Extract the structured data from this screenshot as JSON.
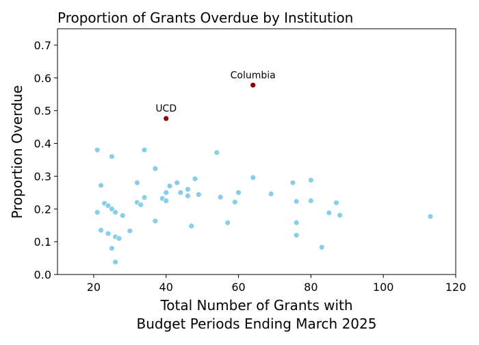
{
  "chart_data": {
    "type": "scatter",
    "title": "Proportion of Grants Overdue by Institution",
    "xlabel": [
      "Total Number of Grants with",
      "Budget Periods Ending March 2025"
    ],
    "ylabel": "Proportion Overdue",
    "xlim": [
      10,
      120
    ],
    "ylim": [
      0,
      0.75
    ],
    "xticks": [
      20,
      40,
      60,
      80,
      100,
      120
    ],
    "yticks": [
      0.0,
      0.1,
      0.2,
      0.3,
      0.4,
      0.5,
      0.6,
      0.7
    ],
    "grid": false,
    "colors": {
      "default": "#87ceeb",
      "highlight": "#8b0000"
    },
    "points": [
      [
        21,
        0.38
      ],
      [
        25,
        0.36
      ],
      [
        22,
        0.272
      ],
      [
        23,
        0.217
      ],
      [
        24,
        0.21
      ],
      [
        25,
        0.2
      ],
      [
        26,
        0.19
      ],
      [
        21,
        0.19
      ],
      [
        28,
        0.18
      ],
      [
        22,
        0.135
      ],
      [
        24,
        0.125
      ],
      [
        26,
        0.115
      ],
      [
        27,
        0.11
      ],
      [
        25,
        0.08
      ],
      [
        26,
        0.038
      ],
      [
        30,
        0.133
      ],
      [
        32,
        0.28
      ],
      [
        32,
        0.22
      ],
      [
        33,
        0.213
      ],
      [
        34,
        0.38
      ],
      [
        34,
        0.235
      ],
      [
        37,
        0.323
      ],
      [
        37,
        0.163
      ],
      [
        39,
        0.232
      ],
      [
        40,
        0.225
      ],
      [
        40,
        0.25
      ],
      [
        41,
        0.27
      ],
      [
        43,
        0.28
      ],
      [
        44,
        0.25
      ],
      [
        46,
        0.26
      ],
      [
        46,
        0.24
      ],
      [
        48,
        0.292
      ],
      [
        49,
        0.244
      ],
      [
        47,
        0.148
      ],
      [
        54,
        0.372
      ],
      [
        55,
        0.236
      ],
      [
        57,
        0.158
      ],
      [
        59,
        0.221
      ],
      [
        60,
        0.25
      ],
      [
        64,
        0.296
      ],
      [
        69,
        0.246
      ],
      [
        75,
        0.28
      ],
      [
        76,
        0.223
      ],
      [
        76,
        0.158
      ],
      [
        76,
        0.12
      ],
      [
        80,
        0.288
      ],
      [
        80,
        0.225
      ],
      [
        83,
        0.083
      ],
      [
        85,
        0.188
      ],
      [
        87,
        0.219
      ],
      [
        88,
        0.181
      ],
      [
        113,
        0.177
      ]
    ],
    "highlighted": [
      {
        "label": "UCD",
        "x": 40,
        "y": 0.476
      },
      {
        "label": "Columbia",
        "x": 64,
        "y": 0.578
      }
    ]
  }
}
